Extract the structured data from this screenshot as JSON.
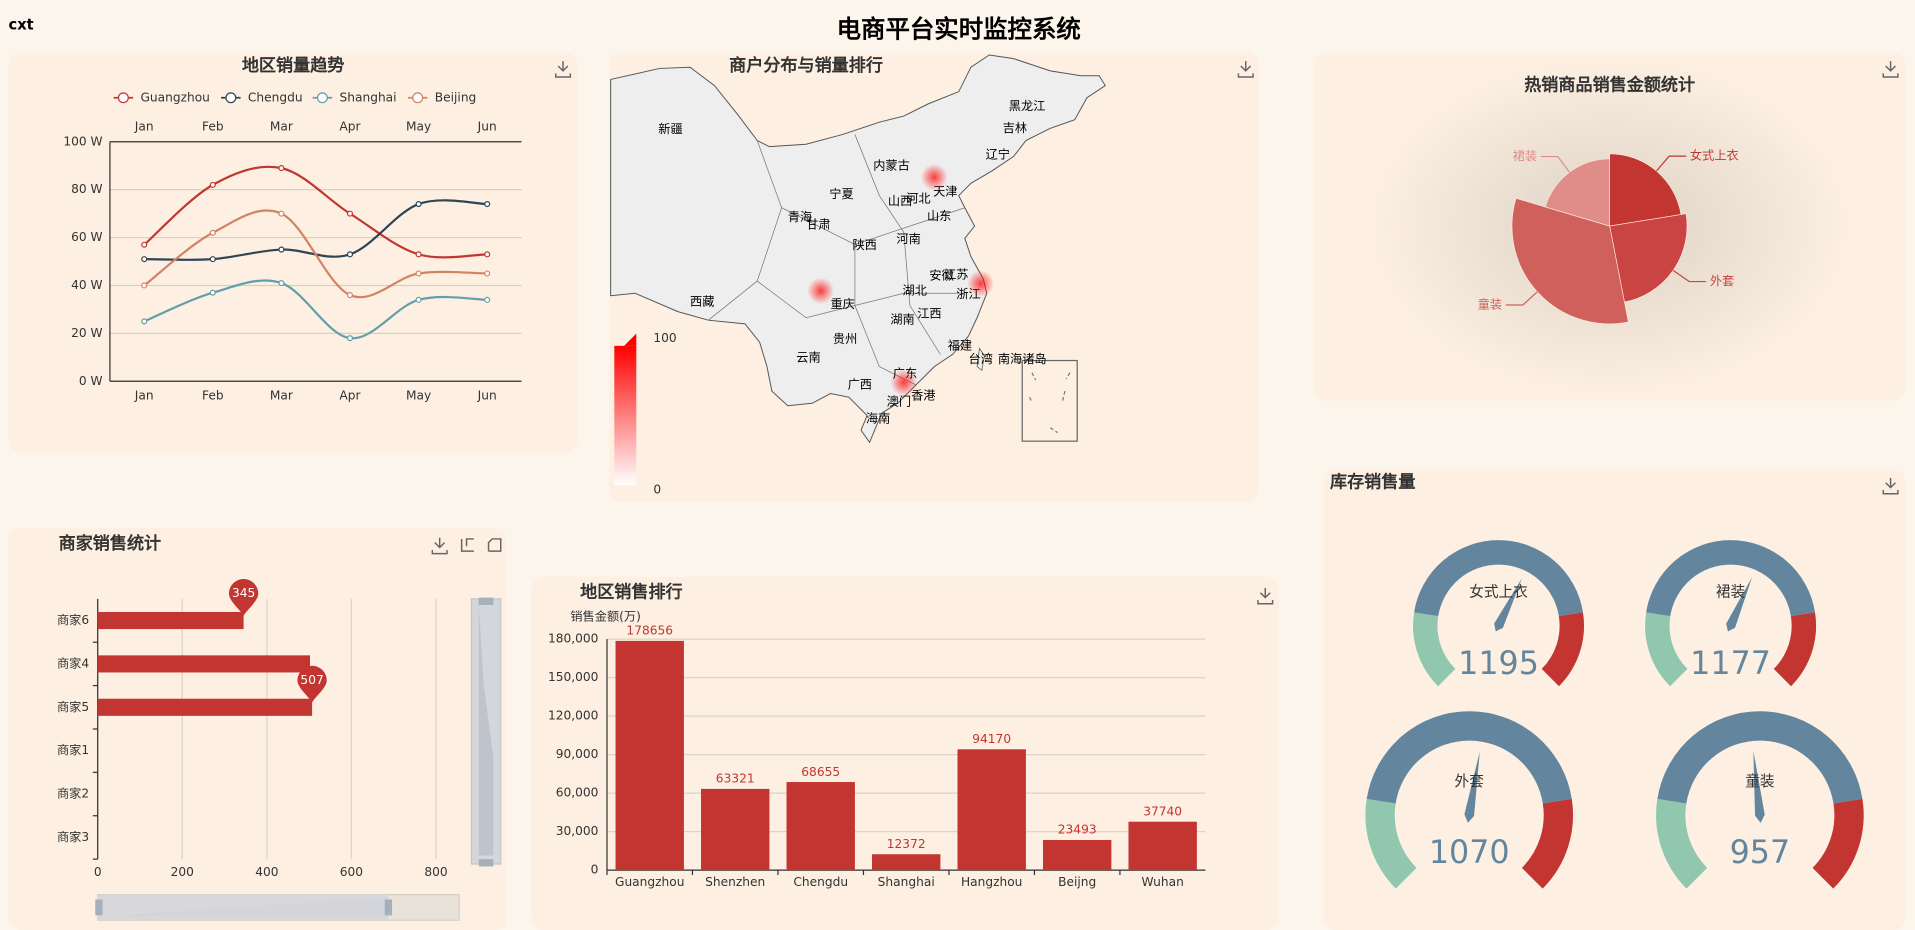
{
  "header": {
    "title": "电商平台实时监控系统",
    "user": "cxt"
  },
  "chart_data": [
    {
      "type": "line",
      "title": "地区销量趋势",
      "categories": [
        "Jan",
        "Feb",
        "Mar",
        "Apr",
        "May",
        "Jun"
      ],
      "series": [
        {
          "name": "Guangzhou",
          "color": "#c23531",
          "values": [
            57,
            82,
            89,
            70,
            53,
            53
          ]
        },
        {
          "name": "Chengdu",
          "color": "#2f4554",
          "values": [
            51,
            51,
            55,
            53,
            74,
            74
          ]
        },
        {
          "name": "Shanghai",
          "color": "#61a0a8",
          "values": [
            25,
            37,
            41,
            18,
            34,
            34
          ]
        },
        {
          "name": "Beijing",
          "color": "#d48265",
          "values": [
            40,
            62,
            70,
            36,
            45,
            45
          ]
        }
      ],
      "ylim": [
        0,
        100
      ],
      "yticks": [
        {
          "value": 0,
          "label": "0 W"
        },
        {
          "value": 20,
          "label": "20 W"
        },
        {
          "value": 40,
          "label": "40 W"
        },
        {
          "value": 60,
          "label": "60 W"
        },
        {
          "value": 80,
          "label": "80 W"
        },
        {
          "value": 100,
          "label": "100 W"
        }
      ],
      "grid": true,
      "legend": "top"
    },
    {
      "type": "map",
      "title": "商户分布与销量排行",
      "regions": [
        "新疆",
        "西藏",
        "青海",
        "甘肃",
        "宁夏",
        "内蒙古",
        "山西",
        "河北",
        "天津",
        "陕西",
        "河南",
        "山东",
        "重庆",
        "湖北",
        "安徽",
        "江苏",
        "浙江",
        "湖南",
        "江西",
        "贵州",
        "云南",
        "广西",
        "广东",
        "澳门",
        "香港",
        "海南",
        "福建",
        "台湾",
        "南海诸岛",
        "黑龙江",
        "吉林",
        "辽宁"
      ],
      "visual_range": [
        0,
        100
      ],
      "color": "#ff0000"
    },
    {
      "type": "pie",
      "title": "热销商品销售金额统计",
      "categories": [
        "女式上衣",
        "外套",
        "童装",
        "裙装"
      ],
      "values": [
        22,
        24,
        32,
        20
      ],
      "colors": [
        "#c23531",
        "#c94442",
        "#d0605c",
        "#e08c88"
      ],
      "rose": true
    },
    {
      "type": "hbar",
      "title": "商家销售统计",
      "categories": [
        "商家3",
        "商家2",
        "商家1",
        "商家5",
        "商家4",
        "商家6"
      ],
      "values": [
        null,
        null,
        null,
        507,
        502,
        345
      ],
      "color": "#c23531",
      "xlim": [
        0,
        850
      ],
      "xticks": [
        0,
        200,
        400,
        600,
        800
      ],
      "grid": true
    },
    {
      "type": "bar",
      "title": "地区销售排行",
      "y_label": "销售金额(万)",
      "categories": [
        "Guangzhou",
        "Shenzhen",
        "Chengdu",
        "Shanghai",
        "Hangzhou",
        "Beijng",
        "Wuhan"
      ],
      "values": [
        178656,
        63321,
        68655,
        12372,
        94170,
        23493,
        37740
      ],
      "color": "#c23531",
      "ylim": [
        0,
        180000
      ],
      "yticks": [
        0,
        {
          "value": 30000,
          "label": "30,000"
        },
        {
          "value": 60000,
          "label": "60,000"
        },
        {
          "value": 90000,
          "label": "90,000"
        },
        {
          "value": 120000,
          "label": "120,000"
        },
        {
          "value": 150000,
          "label": "150,000"
        },
        {
          "value": 180000,
          "label": "180,000"
        }
      ],
      "grid": true
    },
    {
      "type": "gauge",
      "title": "库存销售量",
      "categories": [
        "女式上衣",
        "裙装",
        "外套",
        "童装"
      ],
      "values": [
        1195,
        1177,
        1070,
        957
      ],
      "min": 0,
      "max": 2000,
      "colors": [
        "#91c7ae",
        "#63869e",
        "#c23531"
      ]
    }
  ]
}
